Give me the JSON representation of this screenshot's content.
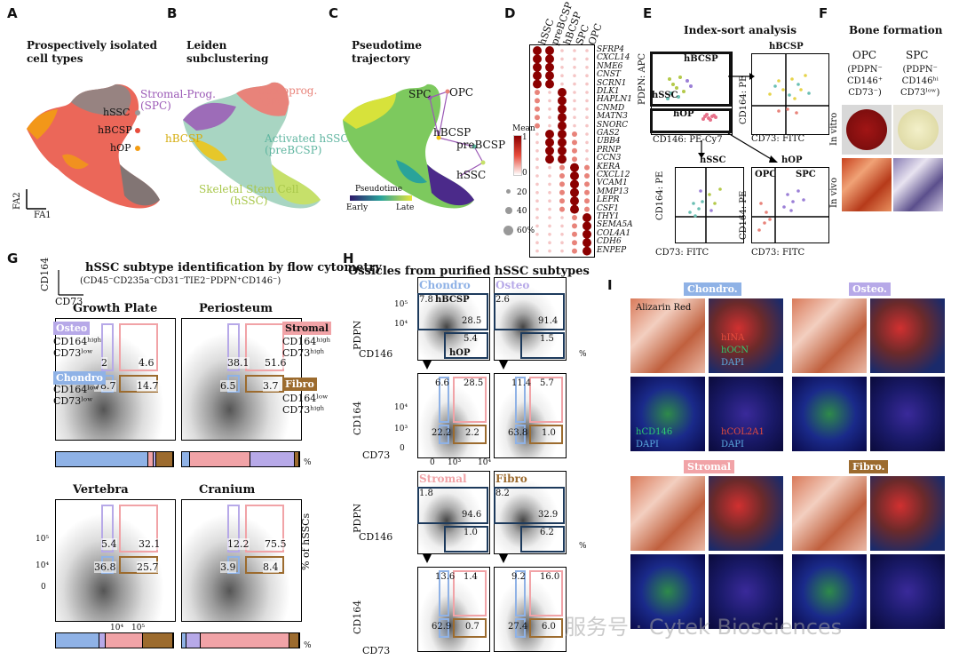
{
  "panels": {
    "A": {
      "letter": "A",
      "title": "Prospectively isolated\ncell types",
      "labels": [
        "hSSC",
        "hBCSP",
        "hOP"
      ],
      "axis_x": "FA1",
      "axis_y": "FA2"
    },
    "B": {
      "letter": "B",
      "title": "Leiden\nsubclustering",
      "clusters": {
        "stromal": "Stromal-Prog.\n(SPC)",
        "osteo": "Osteoprog.\n(OPC)",
        "hbcsp": "hBCSP",
        "activated": "Activated hSSC\n(preBCSP)",
        "skeletal": "Skeletal Stem Cell\n(hSSC)"
      }
    },
    "C": {
      "letter": "C",
      "title": "Pseudotime\ntrajectory",
      "nodes": [
        "SPC",
        "OPC",
        "hBCSP",
        "preBCSP",
        "hSSC"
      ],
      "legend_title": "Pseudotime",
      "legend_early": "Early",
      "legend_late": "Late"
    },
    "D": {
      "letter": "D",
      "columns": [
        "hSSC",
        "preBCSP",
        "hBCSP",
        "SPC",
        "OPC"
      ],
      "genes": [
        "SFRP4",
        "CXCL14",
        "NME6",
        "CNST",
        "SCRN1",
        "DLK1",
        "HAPLN1",
        "CNMD",
        "MATN3",
        "SNORC",
        "GAS2",
        "UBB4",
        "PRNP",
        "CCN3",
        "KERA",
        "CXCL12",
        "VCAM1",
        "MMP13",
        "LEPR",
        "CSF1",
        "THY1",
        "SEMA5A",
        "COL4A1",
        "CDH6",
        "ENPEP"
      ],
      "mean_label": "Mean",
      "mean_max": "1",
      "mean_min": "0",
      "size_labels": [
        "20",
        "40",
        "60%"
      ]
    },
    "E": {
      "letter": "E",
      "title": "Index-sort analysis",
      "x_main": "CD146: PE-Cy7",
      "y_main": "PDPN: APC",
      "gates": [
        "hBCSP",
        "hSSC",
        "hOP"
      ],
      "sub_hbcsp": "hBCSP",
      "sub_hssc": "hSSC",
      "sub_hop": "hOP",
      "opc": "OPC",
      "spc": "SPC",
      "x_sub": "CD73: FITC",
      "y_sub": "CD164: PE"
    },
    "F": {
      "letter": "F",
      "title": "Bone formation",
      "opc_name": "OPC",
      "opc_markers": "(PDPN⁻\nCD146⁺\nCD73⁻)",
      "spc_name": "SPC",
      "spc_markers": "(PDPN⁻\nCD146ʰⁱ\nCD73ˡᵒʷ)",
      "in_vitro": "In vitro",
      "in_vivo": "In vivo"
    },
    "G": {
      "letter": "G",
      "title": "hSSC subtype identification by flow cytometry",
      "subtitle": "(CD45⁻CD235a⁻CD31⁻TIE2⁻PDPN⁺CD146⁻)",
      "axis_y": "CD164",
      "axis_x": "CD73",
      "tissues": [
        {
          "name": "Growth Plate",
          "osteo": "2",
          "stromal": "4.6",
          "chondro": "78.7",
          "fibro": "14.7"
        },
        {
          "name": "Periosteum",
          "osteo": "38.1",
          "stromal": "51.6",
          "chondro": "6.5",
          "fibro": "3.7"
        },
        {
          "name": "Vertebra",
          "osteo": "5.4",
          "stromal": "32.1",
          "chondro": "36.8",
          "fibro": "25.7"
        },
        {
          "name": "Cranium",
          "osteo": "12.2",
          "stromal": "75.5",
          "chondro": "3.9",
          "fibro": "8.4"
        }
      ],
      "tags": {
        "osteo": "Osteo",
        "stromal": "Stromal",
        "chondro": "Chondro",
        "fibro": "Fibro"
      },
      "desc_osteo": "CD164ʰⁱᵍʰ\nCD73ˡᵒʷ",
      "desc_stromal": "CD164ʰⁱᵍʰ\nCD73ʰⁱᵍʰ",
      "desc_chondro": "CD164ˡᵒʷ\nCD73ˡᵒʷ",
      "desc_fibro": "CD164ˡᵒʷ\nCD73ʰⁱᵍʰ",
      "pct": "%",
      "side_label": "% of hSSCs",
      "bar_fractions": [
        [
          0.787,
          0.02,
          0.046,
          0.147
        ],
        [
          0.065,
          0.381,
          0.516,
          0.037
        ],
        [
          0.368,
          0.054,
          0.321,
          0.257
        ],
        [
          0.039,
          0.122,
          0.755,
          0.084
        ]
      ],
      "ticks": {
        "y1": "10⁵",
        "y2": "10⁴",
        "y3": "0",
        "x1": "10⁴",
        "x2": "10⁵"
      }
    },
    "H": {
      "letter": "H",
      "title": "Ossicles from purified hSSC subtypes",
      "axis_pdpn": "PDPN",
      "axis_cd146": "CD146",
      "axis_cd164": "CD164",
      "axis_cd73": "CD73",
      "gate_hbcsp": "hBCSP",
      "gate_hop": "hOP",
      "groups": [
        {
          "name": "Chondro",
          "tl": "7.8",
          "tr": "28.5",
          "br": "5.4",
          "q_ul": "6.6",
          "q_ur": "28.5",
          "q_ll": "22.2",
          "q_lr": "2.2"
        },
        {
          "name": "Osteo",
          "tl": "2.6",
          "tr": "91.4",
          "br": "1.5",
          "q_ul": "11.4",
          "q_ur": "5.7",
          "q_ll": "63.8",
          "q_lr": "1.0"
        },
        {
          "name": "Stromal",
          "tl": "1.8",
          "tr": "94.6",
          "br": "1.0",
          "q_ul": "13.6",
          "q_ur": "1.4",
          "q_ll": "62.9",
          "q_lr": "0.7"
        },
        {
          "name": "Fibro",
          "tl": "8.2",
          "tr": "32.9",
          "br": "6.2",
          "q_ul": "9.2",
          "q_ur": "16.0",
          "q_ll": "27.4",
          "q_lr": "6.0"
        }
      ],
      "ticks": {
        "t1": "10⁵",
        "t2": "10⁴",
        "t3": "10³",
        "t4": "0",
        "x0": "0",
        "x1": "10³",
        "x2": "10⁴"
      },
      "pct": "%"
    },
    "I": {
      "letter": "I",
      "tags": [
        "Chondro.",
        "Osteo.",
        "Stromal",
        "Fibro."
      ],
      "alizarin": "Alizarin Red",
      "stain1": "hINA",
      "stain2": "hOCN",
      "stain3": "DAPI",
      "stain4": "hCD146",
      "stain5": "DAPI",
      "stain6": "hCOL2A1",
      "stain7": "DAPI"
    }
  },
  "watermark": "服务号 · Cytek Biosciences",
  "colors": {
    "osteo": "#b7a9e8",
    "stromal": "#f1a3a7",
    "chondro": "#8fb2e6",
    "fibro": "#9c6b2e",
    "navy": "#1d3a5c"
  }
}
